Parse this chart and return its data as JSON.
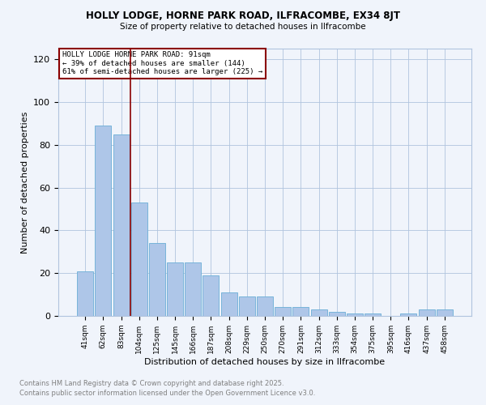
{
  "title": "HOLLY LODGE, HORNE PARK ROAD, ILFRACOMBE, EX34 8JT",
  "subtitle": "Size of property relative to detached houses in Ilfracombe",
  "xlabel": "Distribution of detached houses by size in Ilfracombe",
  "ylabel": "Number of detached properties",
  "categories": [
    "41sqm",
    "62sqm",
    "83sqm",
    "104sqm",
    "125sqm",
    "145sqm",
    "166sqm",
    "187sqm",
    "208sqm",
    "229sqm",
    "250sqm",
    "270sqm",
    "291sqm",
    "312sqm",
    "333sqm",
    "354sqm",
    "375sqm",
    "395sqm",
    "416sqm",
    "437sqm",
    "458sqm"
  ],
  "values": [
    21,
    89,
    85,
    53,
    34,
    25,
    25,
    19,
    11,
    9,
    9,
    4,
    4,
    3,
    2,
    1,
    1,
    0,
    1,
    3,
    3
  ],
  "bar_color": "#aec6e8",
  "bar_edge_color": "#6aaed6",
  "vline_x_index": 2,
  "vline_color": "#8b0000",
  "annotation_line1": "HOLLY LODGE HORNE PARK ROAD: 91sqm",
  "annotation_line2": "← 39% of detached houses are smaller (144)",
  "annotation_line3": "61% of semi-detached houses are larger (225) →",
  "annotation_box_color": "#8b0000",
  "ylim": [
    0,
    125
  ],
  "yticks": [
    0,
    20,
    40,
    60,
    80,
    100,
    120
  ],
  "grid_color": "#b0c4de",
  "background_color": "#f0f4fb",
  "footnote1": "Contains HM Land Registry data © Crown copyright and database right 2025.",
  "footnote2": "Contains public sector information licensed under the Open Government Licence v3.0.",
  "footnote_color": "#808080"
}
